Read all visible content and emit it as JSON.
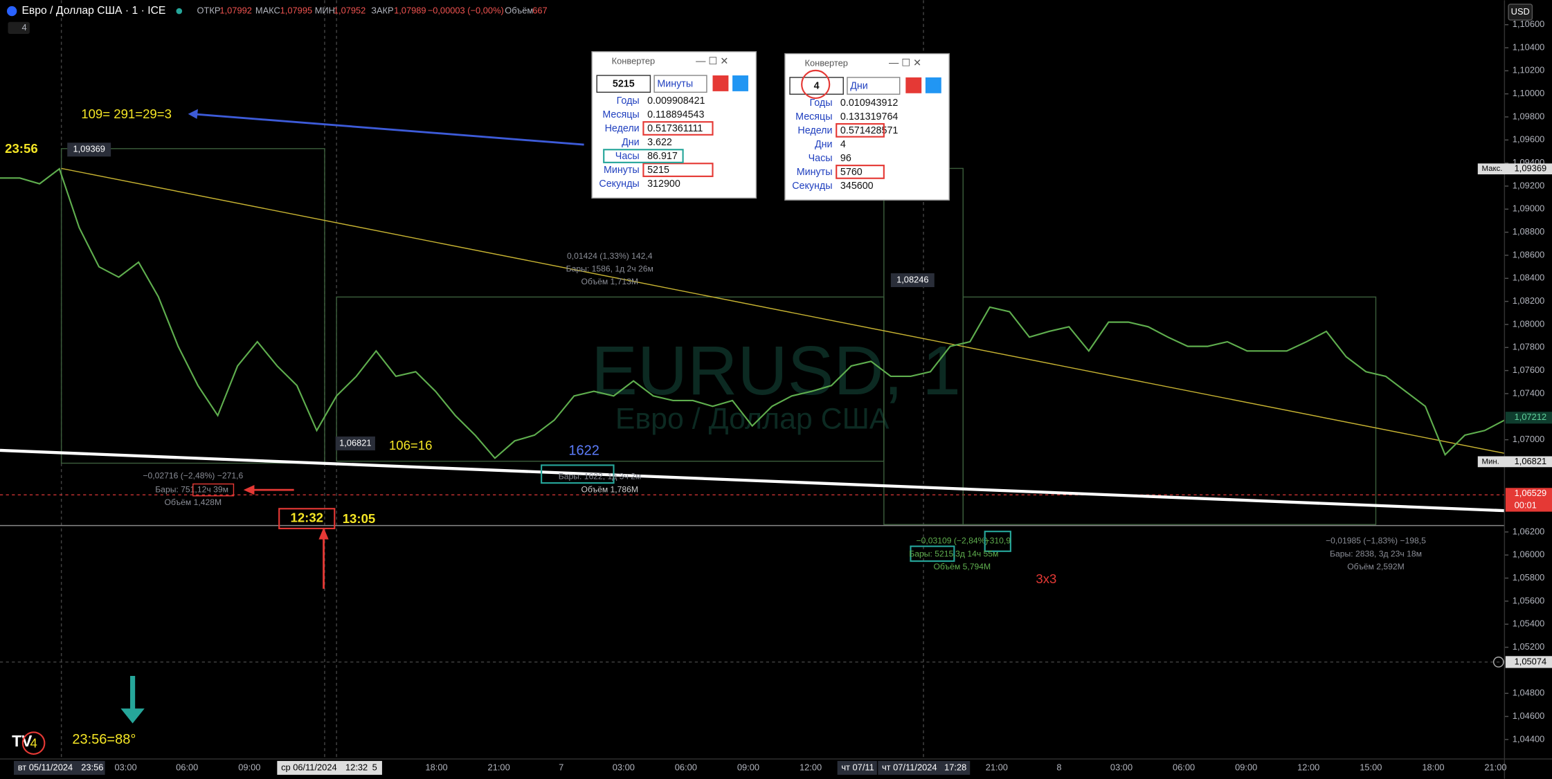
{
  "header": {
    "symbol": "Евро / Доллар США · 1 · ICE",
    "open_label": "ОТКР",
    "open": "1,07992",
    "high_label": "МАКС",
    "high": "1,07995",
    "low_label": "МИН",
    "low": "1,07952",
    "close_label": "ЗАКР",
    "close": "1,07989",
    "change": "−0,00003 (−0,00%)",
    "volume_label": "Объём",
    "volume": "667",
    "indicator_count": "4",
    "currency": "USD"
  },
  "chart_data": {
    "type": "line",
    "color": "#5fae4e",
    "values": [
      1.0927,
      1.0927,
      1.0922,
      1.0935,
      1.0884,
      1.085,
      1.0841,
      1.0854,
      1.0824,
      1.0781,
      1.0747,
      1.0721,
      1.0764,
      1.0785,
      1.0764,
      1.0747,
      1.0708,
      1.0738,
      1.0755,
      1.0777,
      1.0755,
      1.0759,
      1.0742,
      1.0721,
      1.0704,
      1.0684,
      1.0699,
      1.0704,
      1.0717,
      1.0738,
      1.0742,
      1.0738,
      1.0751,
      1.0738,
      1.0734,
      1.0734,
      1.0729,
      1.0734,
      1.0712,
      1.0729,
      1.0738,
      1.0742,
      1.0747,
      1.0764,
      1.0768,
      1.0755,
      1.0755,
      1.0759,
      1.0781,
      1.0785,
      1.0815,
      1.0811,
      1.0789,
      1.0794,
      1.0798,
      1.0777,
      1.0802,
      1.0802,
      1.0798,
      1.0789,
      1.0781,
      1.0781,
      1.0785,
      1.0777,
      1.0777,
      1.0777,
      1.0785,
      1.0794,
      1.0772,
      1.0759,
      1.0755,
      1.0742,
      1.0729,
      1.0687,
      1.0704,
      1.0708,
      1.0717
    ],
    "ylim": [
      1.04231,
      1.10812
    ],
    "yticks": [
      {
        "value": 1.106,
        "label": "1,10600"
      },
      {
        "value": 1.104,
        "label": "1,10400"
      },
      {
        "value": 1.102,
        "label": "1,10200"
      },
      {
        "value": 1.1,
        "label": "1,10000"
      },
      {
        "value": 1.098,
        "label": "1,09800"
      },
      {
        "value": 1.096,
        "label": "1,09600"
      },
      {
        "value": 1.094,
        "label": "1,09400"
      },
      {
        "value": 1.092,
        "label": "1,09200"
      },
      {
        "value": 1.09,
        "label": "1,09000"
      },
      {
        "value": 1.088,
        "label": "1,08800"
      },
      {
        "value": 1.086,
        "label": "1,08600"
      },
      {
        "value": 1.084,
        "label": "1,08400"
      },
      {
        "value": 1.082,
        "label": "1,08200"
      },
      {
        "value": 1.08,
        "label": "1,08000"
      },
      {
        "value": 1.078,
        "label": "1,07800"
      },
      {
        "value": 1.076,
        "label": "1,07600"
      },
      {
        "value": 1.074,
        "label": "1,07400"
      },
      {
        "value": 1.07,
        "label": "1,07000"
      },
      {
        "value": 1.062,
        "label": "1,06200"
      },
      {
        "value": 1.06,
        "label": "1,06000"
      },
      {
        "value": 1.058,
        "label": "1,05800"
      },
      {
        "value": 1.056,
        "label": "1,05600"
      },
      {
        "value": 1.054,
        "label": "1,05400"
      },
      {
        "value": 1.052,
        "label": "1,05200"
      },
      {
        "value": 1.048,
        "label": "1,04800"
      },
      {
        "value": 1.046,
        "label": "1,04600"
      },
      {
        "value": 1.044,
        "label": "1,04400"
      }
    ]
  },
  "price_labels": {
    "max_tag": "Макс.",
    "max": "1,09369",
    "last": "1,07212",
    "min_tag": "Мин.",
    "min": "1,06821",
    "current": "1,06529",
    "countdown": "00:01",
    "cursor": "1,05074"
  },
  "time_labels": [
    "вт 05/11/2024",
    "23:56",
    "03:00",
    "06:00",
    "09:00",
    "ср 06/11/2024",
    "12:32",
    "5",
    "18:00",
    "21:00",
    "7",
    "03:00",
    "06:00",
    "09:00",
    "12:00",
    "чт 07/11",
    "чт 07/11/2024",
    "17:28",
    "21:00",
    "8",
    "03:00",
    "06:00",
    "09:00",
    "12:00",
    "15:00",
    "18:00",
    "21:00"
  ],
  "converters": [
    {
      "title": "Конвертер",
      "input": "5215",
      "unit": "Минуты",
      "rows": [
        [
          "Годы",
          "0.009908421"
        ],
        [
          "Месяцы",
          "0.118894543"
        ],
        [
          "Недели",
          "0.517361111"
        ],
        [
          "Дни",
          "3.622"
        ],
        [
          "Часы",
          "86.917"
        ],
        [
          "Минуты",
          "5215"
        ],
        [
          "Секунды",
          "312900"
        ]
      ]
    },
    {
      "title": "Конвертер",
      "input": "4",
      "unit": "Дни",
      "rows": [
        [
          "Годы",
          "0.010943912"
        ],
        [
          "Месяцы",
          "0.131319764"
        ],
        [
          "Недели",
          "0.571428571"
        ],
        [
          "Дни",
          "4"
        ],
        [
          "Часы",
          "96"
        ],
        [
          "Минуты",
          "5760"
        ],
        [
          "Секунды",
          "345600"
        ]
      ]
    }
  ],
  "annotations": {
    "formula": "109= 291=29=3",
    "time_start": "23:56",
    "high_point": "1,09369",
    "peak_point": "1,08246",
    "low_point": "1,06821",
    "ratio": "106=16",
    "bars_count": "1622",
    "time_low": "12:32",
    "time_next": "13:05",
    "angle": "23:56=88°",
    "grid_note": "3x3",
    "watermark": "EURUSD, 1",
    "watermark_sub": "Евро / Доллар США",
    "m1": [
      "−0,02716 (−2,48%) −271,6",
      "Бары: 751,",
      "12ч 39м",
      "Объём 1,428M"
    ],
    "m2": [
      "0,01424 (1,33%) 142,4",
      "Бары: 1586, 1д 2ч 26м",
      "Объём 1,713M"
    ],
    "m3": [
      "Бары: 1622, 1д 3ч 2м",
      "Объём 1,786M"
    ],
    "m4": [
      "−0,03109 (−2,84%)",
      "−310,9",
      "Бары: 5215,",
      "3д 14ч 55м",
      "Объём 5,794M"
    ],
    "m5": [
      "−0,01985 (−1,83%) −198,5",
      "Бары: 2838, 3д 23ч 18м",
      "Объём 2,592M"
    ]
  }
}
